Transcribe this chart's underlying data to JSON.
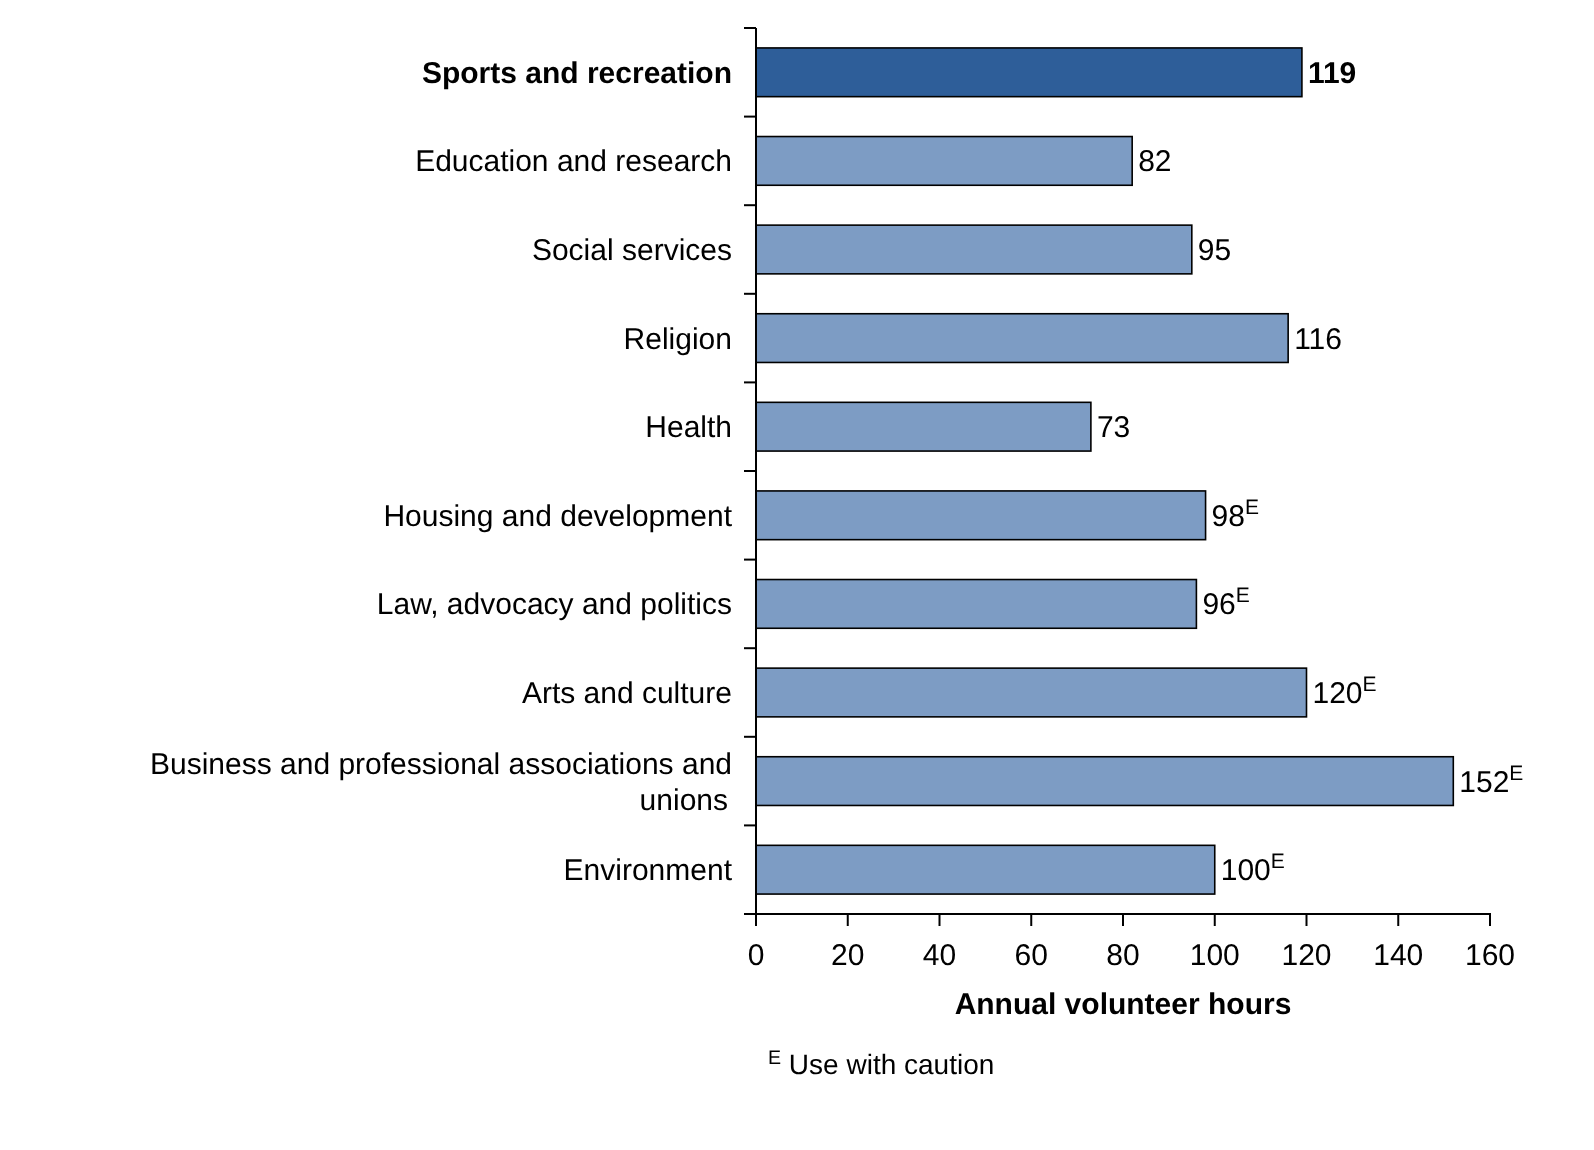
{
  "chart_data": {
    "type": "bar",
    "orientation": "horizontal",
    "xlabel": "Annual volunteer hours",
    "categories": [
      "Sports and recreation",
      "Education and research",
      "Social services",
      "Religion",
      "Health",
      "Housing and development",
      "Law, advocacy and politics",
      "Arts and culture",
      "Business and professional associations and unions",
      "Environment"
    ],
    "values": [
      119,
      82,
      95,
      116,
      73,
      98,
      96,
      120,
      152,
      100
    ],
    "colors": [
      "#2e5e99",
      "#7d9cc4",
      "#7d9cc4",
      "#7d9cc4",
      "#7d9cc4",
      "#7d9cc4",
      "#7d9cc4",
      "#7d9cc4",
      "#7d9cc4",
      "#7d9cc4"
    ],
    "value_labels": [
      "119",
      "82",
      "95",
      "116",
      "73",
      "98$^{E}$",
      "96$^{E}$",
      "120$^{E}$",
      "152$^{E}$",
      "100$^{E}$"
    ],
    "xlim": [
      0,
      160
    ],
    "xticks": [
      0,
      20,
      40,
      60,
      80,
      100,
      120,
      140,
      160
    ],
    "grid": false,
    "annotations": [
      "$^{E}$ Use with caution"
    ]
  }
}
